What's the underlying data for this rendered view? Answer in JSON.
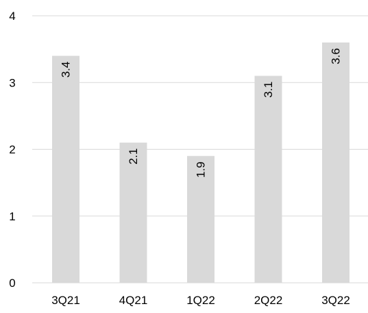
{
  "chart_data": {
    "type": "bar",
    "categories": [
      "3Q21",
      "4Q21",
      "1Q22",
      "2Q22",
      "3Q22"
    ],
    "values": [
      3.4,
      2.1,
      1.9,
      3.1,
      3.6
    ],
    "data_labels": [
      "3.4",
      "2.1",
      "1.9",
      "3.1",
      "3.6"
    ],
    "y_ticks": [
      0,
      1,
      2,
      3,
      4
    ],
    "ylim": [
      0,
      4
    ],
    "grid": true,
    "legend": "none",
    "data_label_orientation": "vertical",
    "colors": {
      "bar": "#d9d9d9",
      "grid": "#d9d9d9",
      "text": "#000000"
    }
  }
}
